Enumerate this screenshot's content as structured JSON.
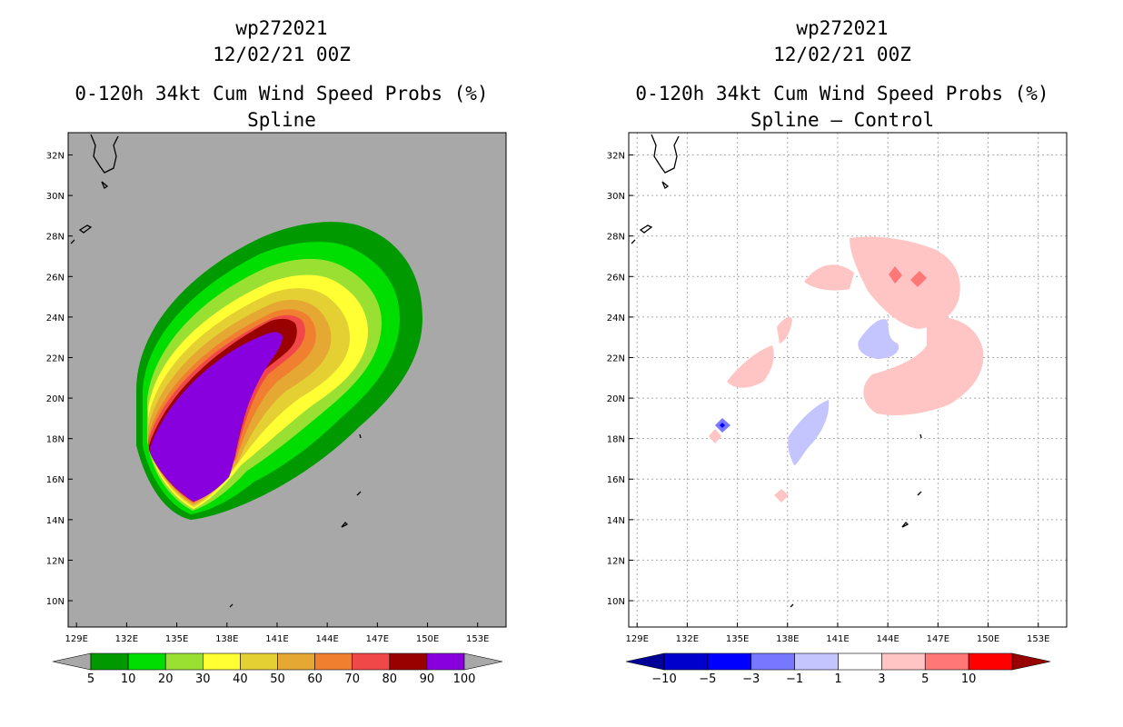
{
  "panels": [
    {
      "storm": "wp272021",
      "date": "12/02/21 00Z",
      "title": "0-120h 34kt Cum Wind Speed Probs (%)",
      "subtitle": "Spline",
      "background": "#a8a8a8"
    },
    {
      "storm": "wp272021",
      "date": "12/02/21 00Z",
      "title": "0-120h 34kt Cum Wind Speed Probs (%)",
      "subtitle": "Spline – Control",
      "background": "#ffffff"
    }
  ],
  "chart_data": [
    {
      "type": "heatmap",
      "title": "0-120h 34kt Cum Wind Speed Probs (%)",
      "subtitle": "Spline",
      "xlim": [
        128.5,
        154.7
      ],
      "ylim": [
        8.7,
        33.1
      ],
      "x_ticks": [
        129,
        132,
        135,
        138,
        141,
        144,
        147,
        150,
        153
      ],
      "x_tick_labels": [
        "129E",
        "132E",
        "135E",
        "138E",
        "141E",
        "144E",
        "147E",
        "150E",
        "153E"
      ],
      "y_ticks": [
        10,
        12,
        14,
        16,
        18,
        20,
        22,
        24,
        26,
        28,
        30,
        32
      ],
      "y_tick_labels": [
        "10N",
        "12N",
        "14N",
        "16N",
        "18N",
        "20N",
        "22N",
        "24N",
        "26N",
        "28N",
        "30N",
        "32N"
      ],
      "colorbar": {
        "labels": [
          "5",
          "10",
          "20",
          "30",
          "40",
          "50",
          "60",
          "70",
          "80",
          "90",
          "100"
        ],
        "colors": [
          "#009900",
          "#00dd00",
          "#99e033",
          "#ffff33",
          "#e5d033",
          "#e5a833",
          "#f08030",
          "#f04848",
          "#990000",
          "#8800dd"
        ],
        "low_color": "#a8a8a8",
        "high_color": "#a8a8a8"
      }
    },
    {
      "type": "heatmap",
      "title": "0-120h 34kt Cum Wind Speed Probs (%)",
      "subtitle": "Spline – Control",
      "xlim": [
        128.5,
        154.7
      ],
      "ylim": [
        8.7,
        33.1
      ],
      "x_ticks": [
        129,
        132,
        135,
        138,
        141,
        144,
        147,
        150,
        153
      ],
      "x_tick_labels": [
        "129E",
        "132E",
        "135E",
        "138E",
        "141E",
        "144E",
        "147E",
        "150E",
        "153E"
      ],
      "y_ticks": [
        10,
        12,
        14,
        16,
        18,
        20,
        22,
        24,
        26,
        28,
        30,
        32
      ],
      "y_tick_labels": [
        "10N",
        "12N",
        "14N",
        "16N",
        "18N",
        "20N",
        "22N",
        "24N",
        "26N",
        "28N",
        "30N",
        "32N"
      ],
      "grid": true,
      "colorbar": {
        "labels": [
          "−10",
          "−5",
          "−3",
          "−1",
          "1",
          "3",
          "5",
          "10"
        ],
        "colors": [
          "#0000cc",
          "#0000ff",
          "#7777ff",
          "#c4c4ff",
          "#ffffff",
          "#ffc4c4",
          "#ff7777",
          "#ff0000"
        ],
        "low_color": "#000099",
        "high_color": "#990000"
      }
    }
  ]
}
